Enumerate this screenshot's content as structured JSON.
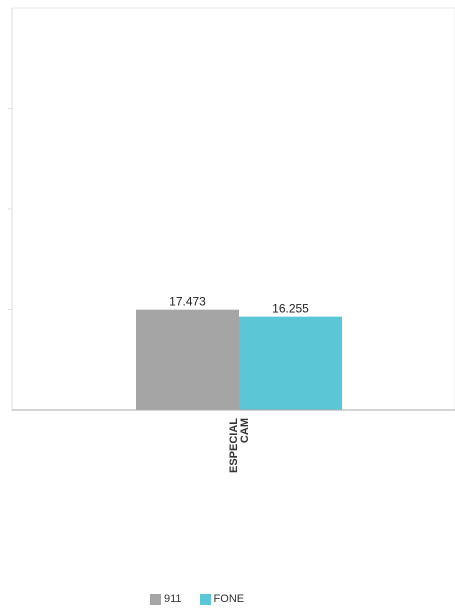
{
  "chart_data": {
    "type": "bar",
    "categories": [
      "ESPECIAL CAM"
    ],
    "series": [
      {
        "name": "911",
        "values": [
          17473
        ],
        "labels": [
          "17.473"
        ],
        "color": "#a5a5a5"
      },
      {
        "name": "FONE",
        "values": [
          16255
        ],
        "labels": [
          "16.255"
        ],
        "color": "#5bc6d6"
      }
    ],
    "ylim": [
      0,
      70000
    ],
    "grid": false,
    "legend_position": "bottom-center",
    "title": "",
    "xlabel": "",
    "ylabel": ""
  }
}
